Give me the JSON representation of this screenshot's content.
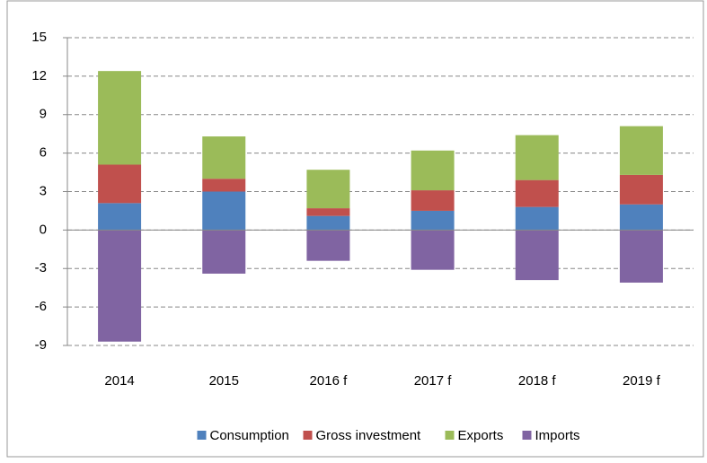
{
  "chart_data": {
    "type": "stacked_bar",
    "categories": [
      "2014",
      "2015",
      "2016 f",
      "2017 f",
      "2018 f",
      "2019 f"
    ],
    "series": [
      {
        "name": "Consumption",
        "color": "#4f81bd",
        "values": [
          2.1,
          3.0,
          1.1,
          1.5,
          1.8,
          2.0
        ]
      },
      {
        "name": "Gross investment",
        "color": "#c0504d",
        "values": [
          3.0,
          1.0,
          0.6,
          1.6,
          2.1,
          2.3
        ]
      },
      {
        "name": "Exports",
        "color": "#9bbb59",
        "values": [
          7.3,
          3.3,
          3.0,
          3.1,
          3.5,
          3.8
        ]
      },
      {
        "name": "Imports",
        "color": "#8064a2",
        "values": [
          -8.7,
          -3.4,
          -2.4,
          -3.1,
          -3.9,
          -4.1
        ]
      }
    ],
    "ylim": [
      -9,
      15
    ],
    "yticks": [
      -9,
      -6,
      -3,
      0,
      3,
      6,
      9,
      12,
      15
    ],
    "grid": true,
    "legend": "bottom"
  }
}
